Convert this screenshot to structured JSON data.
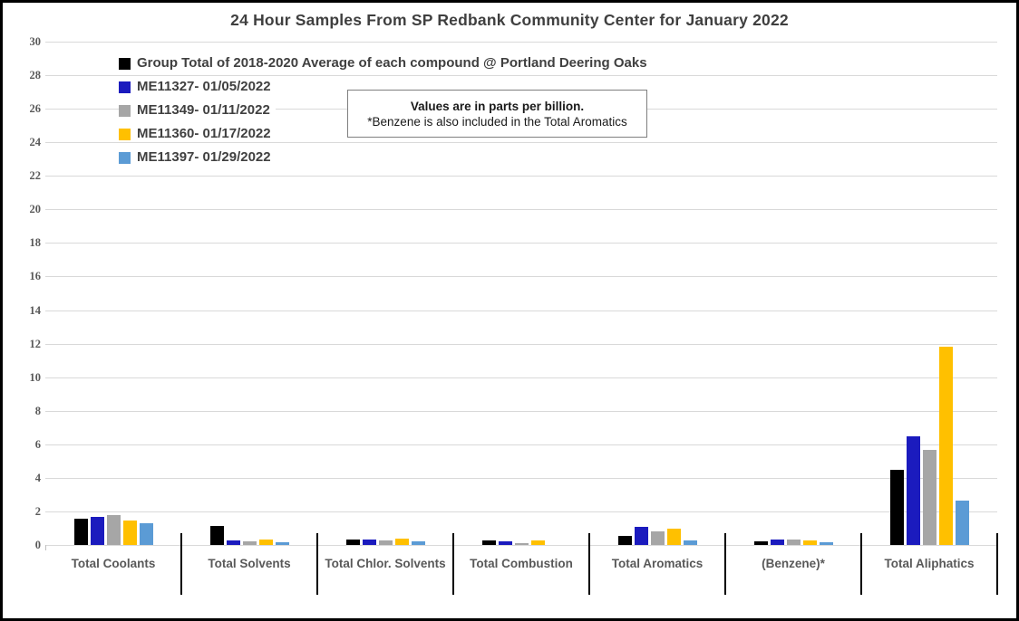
{
  "note": {
    "line1": "Values are in parts per billion.",
    "line2": "*Benzene is also included in the Total Aromatics"
  },
  "chart_data": {
    "type": "bar",
    "title": "24 Hour Samples From SP Redbank Community Center for January 2022",
    "units": "parts per billion",
    "categories": [
      "Total Coolants",
      "Total Solvents",
      "Total Chlor. Solvents",
      "Total Combustion",
      "Total Aromatics",
      "(Benzene)*",
      "Total Aliphatics"
    ],
    "series": [
      {
        "name": "Group Total of 2018-2020 Average of each compound @ Portland Deering Oaks",
        "color": "#000000",
        "values": [
          1.55,
          1.15,
          0.35,
          0.25,
          0.55,
          0.2,
          4.5
        ]
      },
      {
        "name": "ME11327- 01/05/2022",
        "color": "#1b1bbe",
        "values": [
          1.65,
          0.25,
          0.3,
          0.2,
          1.1,
          0.3,
          6.45
        ]
      },
      {
        "name": "ME11349- 01/11/2022",
        "color": "#a6a6a6",
        "values": [
          1.8,
          0.2,
          0.25,
          0.12,
          0.8,
          0.3,
          5.65
        ]
      },
      {
        "name": "ME11360- 01/17/2022",
        "color": "#ffc000",
        "values": [
          1.45,
          0.3,
          0.4,
          0.28,
          0.95,
          0.25,
          11.8
        ]
      },
      {
        "name": "ME11397- 01/29/2022",
        "color": "#5b9bd5",
        "values": [
          1.3,
          0.15,
          0.2,
          0,
          0.25,
          0.15,
          2.65
        ]
      }
    ],
    "xlabel": "",
    "ylabel": "",
    "ylim": [
      0,
      30
    ],
    "ytick_step": 2,
    "grid": true,
    "legend_position": "top-left-inside",
    "gridline_color": "#d9d9d9"
  }
}
